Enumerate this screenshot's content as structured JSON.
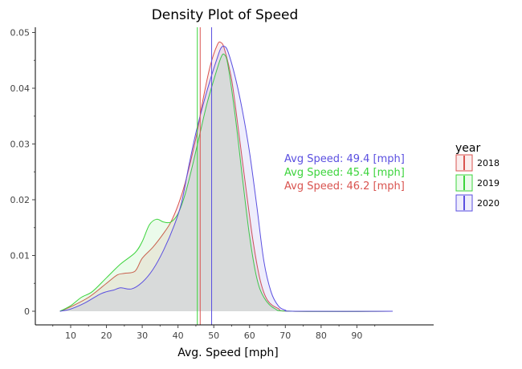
{
  "chart_data": {
    "type": "area",
    "title": "Density Plot of Speed",
    "xlabel": "Avg. Speed [mph]",
    "ylabel": "",
    "xlim": [
      5,
      100
    ],
    "ylim": [
      0,
      0.051
    ],
    "x_ticks": [
      10,
      20,
      30,
      40,
      50,
      60,
      70,
      80,
      90
    ],
    "x_tick_labels": [
      "10",
      "20",
      "30",
      "40",
      "50",
      "60",
      "70",
      "80",
      "90"
    ],
    "y_ticks": [
      0,
      0.01,
      0.02,
      0.03,
      0.04,
      0.05
    ],
    "y_tick_labels": [
      "0",
      "0.01",
      "0.02",
      "0.03",
      "0.04",
      "0.05"
    ],
    "grid": false,
    "legend": {
      "title": "year",
      "placement": "right"
    },
    "series": [
      {
        "name": "2018",
        "color": "#d9534f",
        "mean": 46.2,
        "annotation": "Avg Speed: 46.2 [mph]",
        "points": [
          [
            7,
            0
          ],
          [
            10,
            0.0008
          ],
          [
            15,
            0.0025
          ],
          [
            20,
            0.005
          ],
          [
            23,
            0.0065
          ],
          [
            25,
            0.0068
          ],
          [
            28,
            0.0072
          ],
          [
            30,
            0.0095
          ],
          [
            33,
            0.0115
          ],
          [
            36,
            0.014
          ],
          [
            38,
            0.016
          ],
          [
            40,
            0.019
          ],
          [
            42,
            0.023
          ],
          [
            45,
            0.031
          ],
          [
            47,
            0.038
          ],
          [
            49,
            0.044
          ],
          [
            51,
            0.0478
          ],
          [
            52,
            0.0482
          ],
          [
            53,
            0.047
          ],
          [
            55,
            0.0415
          ],
          [
            57,
            0.032
          ],
          [
            59,
            0.022
          ],
          [
            61,
            0.0125
          ],
          [
            63,
            0.0055
          ],
          [
            65,
            0.002
          ],
          [
            68,
            0.0005
          ],
          [
            72,
            0
          ],
          [
            100,
            0
          ]
        ]
      },
      {
        "name": "2019",
        "color": "#3cd43c",
        "mean": 45.4,
        "annotation": "Avg Speed: 45.4 [mph]",
        "points": [
          [
            7,
            0
          ],
          [
            10,
            0.001
          ],
          [
            13,
            0.0025
          ],
          [
            16,
            0.0035
          ],
          [
            20,
            0.006
          ],
          [
            24,
            0.0085
          ],
          [
            28,
            0.0105
          ],
          [
            30,
            0.0125
          ],
          [
            32,
            0.0155
          ],
          [
            34,
            0.0165
          ],
          [
            36,
            0.016
          ],
          [
            38,
            0.016
          ],
          [
            40,
            0.0175
          ],
          [
            42,
            0.021
          ],
          [
            44,
            0.026
          ],
          [
            46,
            0.0315
          ],
          [
            48,
            0.037
          ],
          [
            50,
            0.0415
          ],
          [
            52,
            0.0455
          ],
          [
            53,
            0.046
          ],
          [
            54,
            0.044
          ],
          [
            56,
            0.035
          ],
          [
            58,
            0.024
          ],
          [
            60,
            0.0135
          ],
          [
            62,
            0.006
          ],
          [
            64,
            0.0025
          ],
          [
            67,
            0.0005
          ],
          [
            72,
            0
          ],
          [
            100,
            0
          ]
        ]
      },
      {
        "name": "2020",
        "color": "#5a4fe0",
        "mean": 49.4,
        "annotation": "Avg Speed: 49.4 [mph]",
        "points": [
          [
            7,
            0
          ],
          [
            10,
            0.0004
          ],
          [
            14,
            0.0015
          ],
          [
            18,
            0.003
          ],
          [
            20,
            0.0035
          ],
          [
            22,
            0.0038
          ],
          [
            24,
            0.0042
          ],
          [
            27,
            0.004
          ],
          [
            30,
            0.0052
          ],
          [
            33,
            0.0075
          ],
          [
            36,
            0.011
          ],
          [
            39,
            0.0155
          ],
          [
            41,
            0.0195
          ],
          [
            43,
            0.026
          ],
          [
            45,
            0.032
          ],
          [
            47,
            0.037
          ],
          [
            49,
            0.0415
          ],
          [
            51,
            0.0455
          ],
          [
            52,
            0.0472
          ],
          [
            53,
            0.0475
          ],
          [
            54,
            0.0465
          ],
          [
            56,
            0.042
          ],
          [
            58,
            0.036
          ],
          [
            60,
            0.0285
          ],
          [
            62,
            0.019
          ],
          [
            64,
            0.009
          ],
          [
            66,
            0.0035
          ],
          [
            68,
            0.001
          ],
          [
            70,
            0.0002
          ],
          [
            73,
            0
          ],
          [
            100,
            0
          ]
        ]
      }
    ]
  }
}
